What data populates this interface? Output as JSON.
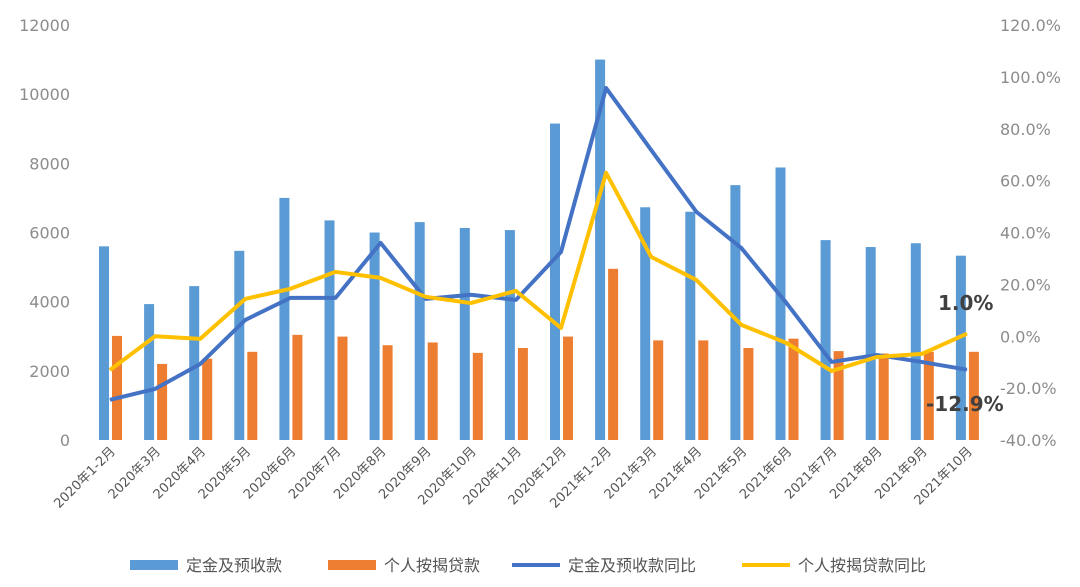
{
  "chart_data": {
    "type": "bar+line",
    "categories": [
      "2020年1-2月",
      "2020年3月",
      "2020年4月",
      "2020年5月",
      "2020年6月",
      "2020年7月",
      "2020年8月",
      "2020年9月",
      "2020年10月",
      "2020年11月",
      "2020年12月",
      "2021年1-2月",
      "2021年3月",
      "2021年4月",
      "2021年5月",
      "2021年6月",
      "2021年7月",
      "2021年8月",
      "2021年9月",
      "2021年10月"
    ],
    "left_axis": {
      "ylim": [
        0,
        12000
      ],
      "ticks": [
        "0",
        "2000",
        "4000",
        "6000",
        "8000",
        "10000",
        "12000"
      ]
    },
    "right_axis": {
      "ylim": [
        -40,
        120
      ],
      "ticks": [
        "-40.0%",
        "-20.0%",
        "0.0%",
        "20.0%",
        "40.0%",
        "60.0%",
        "80.0%",
        "100.0%",
        "120.0%"
      ]
    },
    "grid": false,
    "legend_position": "bottom",
    "series": [
      {
        "name": "定金及预收款",
        "type": "bar",
        "axis": "left",
        "color": "#5B9BD5",
        "values": [
          5600,
          3930,
          4450,
          5470,
          7000,
          6350,
          6000,
          6300,
          6130,
          6070,
          9150,
          11000,
          6730,
          6600,
          7370,
          7880,
          5780,
          5580,
          5690,
          5330
        ]
      },
      {
        "name": "个人按揭贷款",
        "type": "bar",
        "axis": "left",
        "color": "#ED7D31",
        "values": [
          3010,
          2200,
          2350,
          2550,
          3040,
          2990,
          2740,
          2820,
          2520,
          2660,
          2990,
          4950,
          2880,
          2880,
          2660,
          2930,
          2570,
          2500,
          2550,
          2550
        ]
      },
      {
        "name": "定金及预收款同比",
        "type": "line",
        "axis": "right",
        "color": "#4472C4",
        "values": [
          -24.5,
          -20.3,
          -10.7,
          6.3,
          14.8,
          14.8,
          36.0,
          14.4,
          16.0,
          14.0,
          32.5,
          95.7,
          71.8,
          48.0,
          34.0,
          12.8,
          -9.9,
          -7.2,
          -9.9,
          -12.9
        ]
      },
      {
        "name": "个人按揭贷款同比",
        "type": "line",
        "axis": "right",
        "color": "#FFC000",
        "values": [
          -13.0,
          0.0,
          -1.0,
          14.4,
          18.3,
          24.8,
          22.5,
          15.2,
          12.8,
          17.5,
          3.2,
          63.0,
          30.6,
          21.7,
          4.4,
          -2.6,
          -13.4,
          -8.0,
          -6.8,
          1.0
        ]
      }
    ],
    "annotations": [
      {
        "series": "个人按揭贷款同比",
        "category": "2021年10月",
        "text": "1.0%"
      },
      {
        "series": "定金及预收款同比",
        "category": "2021年10月",
        "text": "-12.9%"
      }
    ]
  }
}
